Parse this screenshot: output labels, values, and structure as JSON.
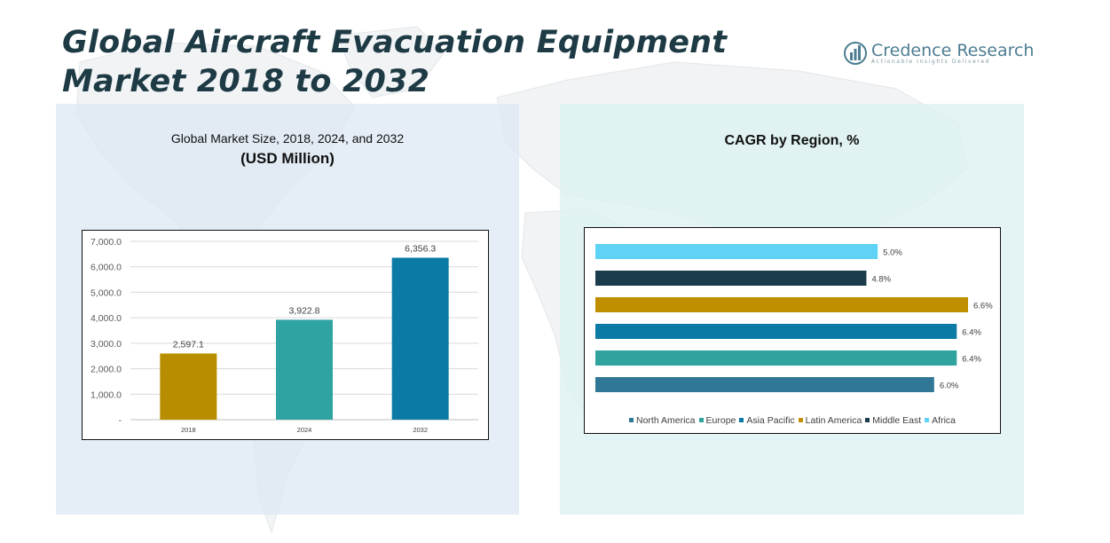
{
  "page": {
    "title": "Global Aircraft Evacuation Equipment Market 2018 to 2032",
    "brand_name": "Credence Research",
    "brand_tagline": "Actionable Insights Delivered"
  },
  "chart_data": [
    {
      "type": "bar",
      "title": "Global Market Size, 2018, 2024, and 2032",
      "subtitle": "(USD Million)",
      "categories": [
        "2018",
        "2024",
        "2032"
      ],
      "values": [
        2597.1,
        3922.8,
        6356.3
      ],
      "value_labels": [
        "2,597.1",
        "3,922.8",
        "6,356.3"
      ],
      "colors": [
        "#b88d00",
        "#2fa3a1",
        "#0b7aa5"
      ],
      "ylim": [
        0,
        7000
      ],
      "yticks": [
        0,
        1000,
        2000,
        3000,
        4000,
        5000,
        6000,
        7000
      ],
      "ytick_labels": [
        "-",
        "1,000.0",
        "2,000.0",
        "3,000.0",
        "4,000.0",
        "5,000.0",
        "6,000.0",
        "7,000.0"
      ],
      "grid": true,
      "legend": "none"
    },
    {
      "type": "bar",
      "orientation": "horizontal",
      "title": "CAGR by Region, %",
      "categories": [
        "North America",
        "Europe",
        "Asia Pacific",
        "Latin America",
        "Middle East",
        "Africa"
      ],
      "values": [
        6.0,
        6.4,
        6.4,
        6.6,
        4.8,
        5.0
      ],
      "value_labels": [
        "6.0%",
        "6.4%",
        "6.4%",
        "6.6%",
        "4.8%",
        "5.0%"
      ],
      "colors": [
        "#2f7794",
        "#31a39e",
        "#0b7aa5",
        "#c08f00",
        "#1b3c4c",
        "#5ed3f5"
      ],
      "xlim": [
        0,
        6.6
      ],
      "grid": false,
      "legend": "bottom"
    }
  ]
}
